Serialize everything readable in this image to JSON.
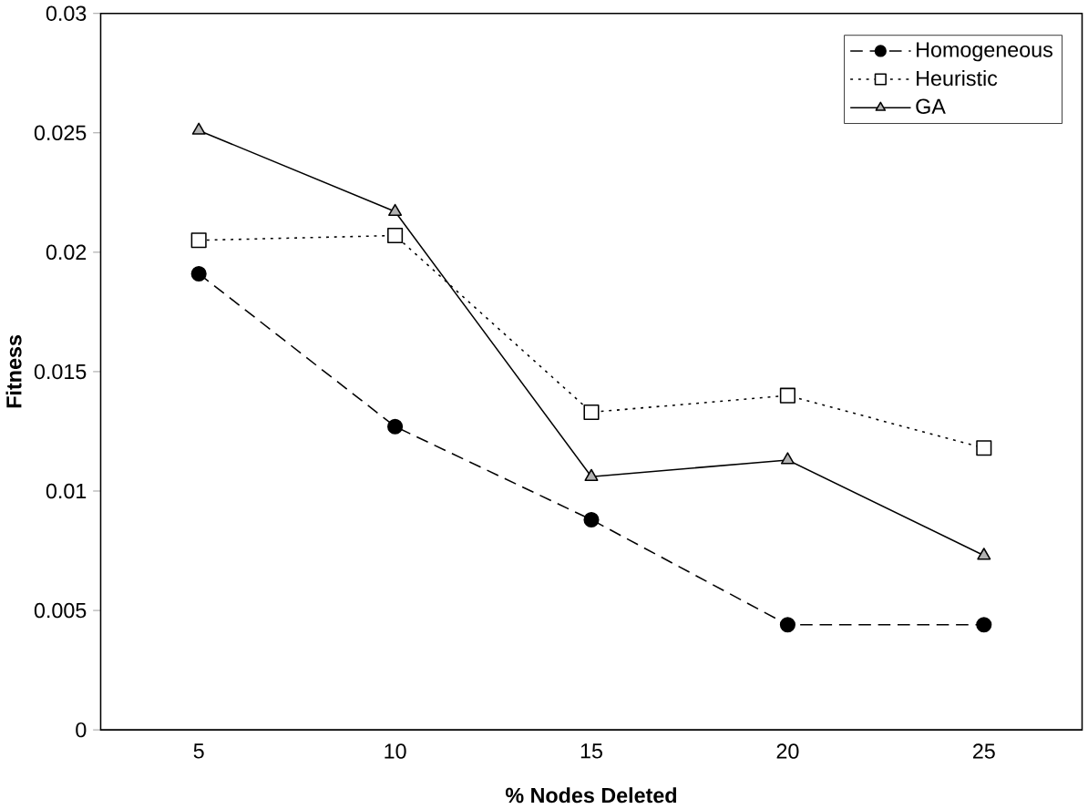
{
  "chart_data": {
    "type": "line",
    "xlabel": "% Nodes Deleted",
    "ylabel": "Fitness",
    "categories": [
      "5",
      "10",
      "15",
      "20",
      "25"
    ],
    "ylim": [
      0,
      0.03
    ],
    "yticks": [
      0,
      0.005,
      0.01,
      0.015,
      0.02,
      0.025,
      0.03
    ],
    "grid": false,
    "legend": "top right",
    "series": [
      {
        "name": "Homogeneous",
        "color": "#000000",
        "marker": "circle",
        "line_style": "dashed",
        "values": [
          0.0191,
          0.0127,
          0.0088,
          0.0044,
          0.0044
        ]
      },
      {
        "name": "Heuristic",
        "color": "#000000",
        "marker": "square",
        "line_style": "dotted",
        "values": [
          0.0205,
          0.0207,
          0.0133,
          0.014,
          0.0118
        ]
      },
      {
        "name": "GA",
        "color": "#000000",
        "marker": "triangle",
        "line_style": "solid",
        "values": [
          0.0251,
          0.0217,
          0.0106,
          0.0113,
          0.0073
        ]
      }
    ]
  }
}
